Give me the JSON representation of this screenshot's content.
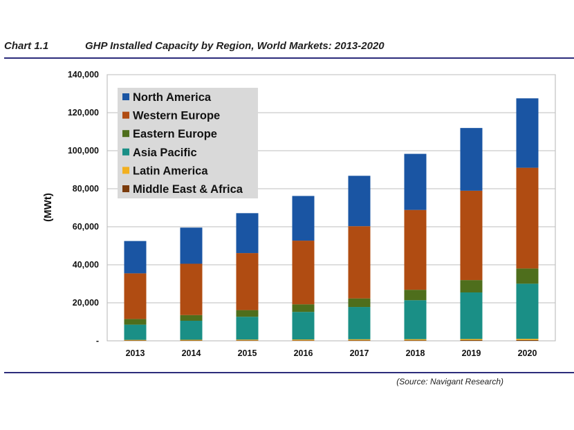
{
  "header": {
    "chart_label": "Chart 1.1",
    "title": "GHP Installed Capacity by Region, World Markets: 2013-2020"
  },
  "footer": {
    "source": "(Source: Navigant Research)"
  },
  "chart_data": {
    "type": "bar",
    "stacked": true,
    "title": "GHP Installed Capacity by Region, World Markets: 2013-2020",
    "xlabel": "",
    "ylabel": "(MWt)",
    "ylim": [
      0,
      140000
    ],
    "yticks": [
      0,
      20000,
      40000,
      60000,
      80000,
      100000,
      120000,
      140000
    ],
    "ytick_labels": [
      "-",
      "20,000",
      "40,000",
      "60,000",
      "80,000",
      "100,000",
      "120,000",
      "140,000"
    ],
    "grid": true,
    "legend_position": "top-left",
    "categories": [
      "2013",
      "2014",
      "2015",
      "2016",
      "2017",
      "2018",
      "2019",
      "2020"
    ],
    "series": [
      {
        "name": "Middle East & Africa",
        "color": "#7a3b0c",
        "values": [
          200,
          200,
          250,
          250,
          300,
          300,
          350,
          400
        ]
      },
      {
        "name": "Latin America",
        "color": "#f2b020",
        "values": [
          300,
          350,
          400,
          450,
          500,
          550,
          600,
          650
        ]
      },
      {
        "name": "Asia Pacific",
        "color": "#1a8f86",
        "values": [
          8000,
          10000,
          12000,
          14500,
          17000,
          20500,
          24500,
          29000
        ]
      },
      {
        "name": "Eastern Europe",
        "color": "#4e6e1c",
        "values": [
          3000,
          3000,
          3500,
          4000,
          4500,
          5500,
          6500,
          8000
        ]
      },
      {
        "name": "Western Europe",
        "color": "#b04c12",
        "values": [
          24000,
          27000,
          30000,
          33500,
          38000,
          42000,
          47000,
          53000
        ]
      },
      {
        "name": "North America",
        "color": "#1a55a3",
        "values": [
          17000,
          19000,
          21000,
          23500,
          26500,
          29500,
          33000,
          36500
        ]
      }
    ],
    "legend_order": [
      "North America",
      "Western Europe",
      "Eastern Europe",
      "Asia Pacific",
      "Latin America",
      "Middle East & Africa"
    ]
  }
}
